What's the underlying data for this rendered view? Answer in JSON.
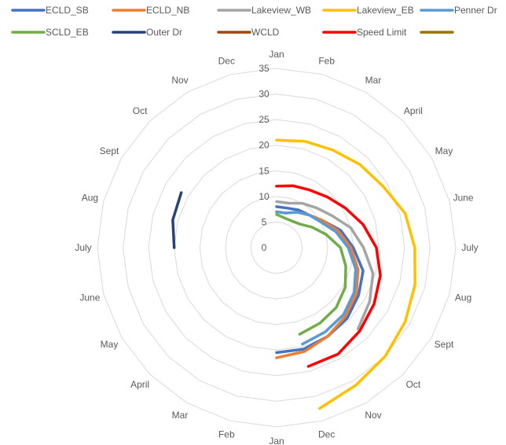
{
  "chart_data": {
    "type": "radar",
    "title": "",
    "categories": [
      "Jan",
      "Feb",
      "Mar",
      "April",
      "May",
      "June",
      "July",
      "Aug",
      "Sept",
      "Oct",
      "Nov",
      "Dec",
      "Jan",
      "Feb",
      "Mar",
      "April",
      "May",
      "June",
      "July",
      "Aug",
      "Sept",
      "Oct",
      "Nov",
      "Dec"
    ],
    "r_ticks": [
      0,
      5,
      10,
      15,
      20,
      25,
      30,
      35
    ],
    "rlim": [
      0,
      35
    ],
    "grid": true,
    "legend_position": "top",
    "series": [
      {
        "name": "ECLD_SB",
        "color": "#4472C4",
        "values": [
          8,
          8,
          8.5,
          9,
          10.5,
          13,
          15,
          17.5,
          18.5,
          19.5,
          20,
          20.5,
          20.5,
          null,
          null,
          null,
          null,
          null,
          null,
          null,
          null,
          null,
          null,
          null
        ]
      },
      {
        "name": "ECLD_NB",
        "color": "#ED7D31",
        "values": [
          7,
          7,
          8,
          9,
          10.5,
          12.5,
          14.5,
          16.5,
          18,
          19,
          20,
          21,
          21.5,
          null,
          null,
          null,
          null,
          null,
          null,
          null,
          null,
          null,
          null,
          null
        ]
      },
      {
        "name": "Lakeview_WB",
        "color": "#A5A5A5",
        "values": [
          9,
          9,
          10,
          11,
          12.5,
          15,
          17,
          19.5,
          21,
          22.5,
          null,
          null,
          null,
          null,
          null,
          null,
          null,
          null,
          null,
          null,
          null,
          null,
          null,
          null
        ]
      },
      {
        "name": "Lakeview_EB",
        "color": "#FFC000",
        "values": [
          21,
          21.5,
          22,
          23,
          24,
          26,
          27,
          28,
          29,
          30,
          31,
          32.5,
          null,
          null,
          null,
          null,
          null,
          null,
          null,
          null,
          null,
          null,
          null,
          null
        ]
      },
      {
        "name": "Penner Dr",
        "color": "#5B9BD5",
        "values": [
          7,
          7,
          8,
          9,
          10,
          12,
          14,
          16,
          17.5,
          18.5,
          19,
          19.5,
          null,
          null,
          null,
          null,
          null,
          null,
          null,
          null,
          null,
          null,
          null,
          null
        ]
      },
      {
        "name": "SCLD_EB",
        "color": "#70AD47",
        "values": [
          6.5,
          6,
          6,
          6.5,
          8,
          10,
          12.5,
          14,
          15.5,
          16.5,
          17,
          17.5,
          null,
          null,
          null,
          null,
          null,
          null,
          null,
          null,
          null,
          null,
          null,
          null
        ]
      },
      {
        "name": "Outer Dr",
        "color": "#264478",
        "values": [
          null,
          null,
          null,
          null,
          null,
          null,
          null,
          null,
          null,
          null,
          null,
          null,
          null,
          null,
          null,
          null,
          null,
          null,
          20,
          21,
          21.5,
          null,
          null,
          null
        ]
      },
      {
        "name": "WCLD",
        "color": "#9E480E",
        "values": [
          null,
          null,
          null,
          null,
          null,
          null,
          null,
          null,
          null,
          null,
          null,
          null,
          null,
          null,
          null,
          null,
          null,
          null,
          null,
          null,
          null,
          null,
          null,
          null
        ]
      },
      {
        "name": "Speed Limit",
        "color": "#FF0000",
        "values": [
          12,
          12.5,
          13,
          14,
          15.5,
          17.5,
          19.5,
          21,
          22,
          23,
          24,
          24,
          null,
          null,
          null,
          null,
          null,
          null,
          null,
          null,
          null,
          null,
          null,
          null
        ]
      },
      {
        "name": "",
        "color": "#997300",
        "values": [
          null,
          null,
          null,
          null,
          null,
          null,
          null,
          null,
          null,
          null,
          null,
          null,
          null,
          null,
          null,
          null,
          null,
          null,
          null,
          null,
          null,
          null,
          null,
          null
        ]
      }
    ]
  }
}
